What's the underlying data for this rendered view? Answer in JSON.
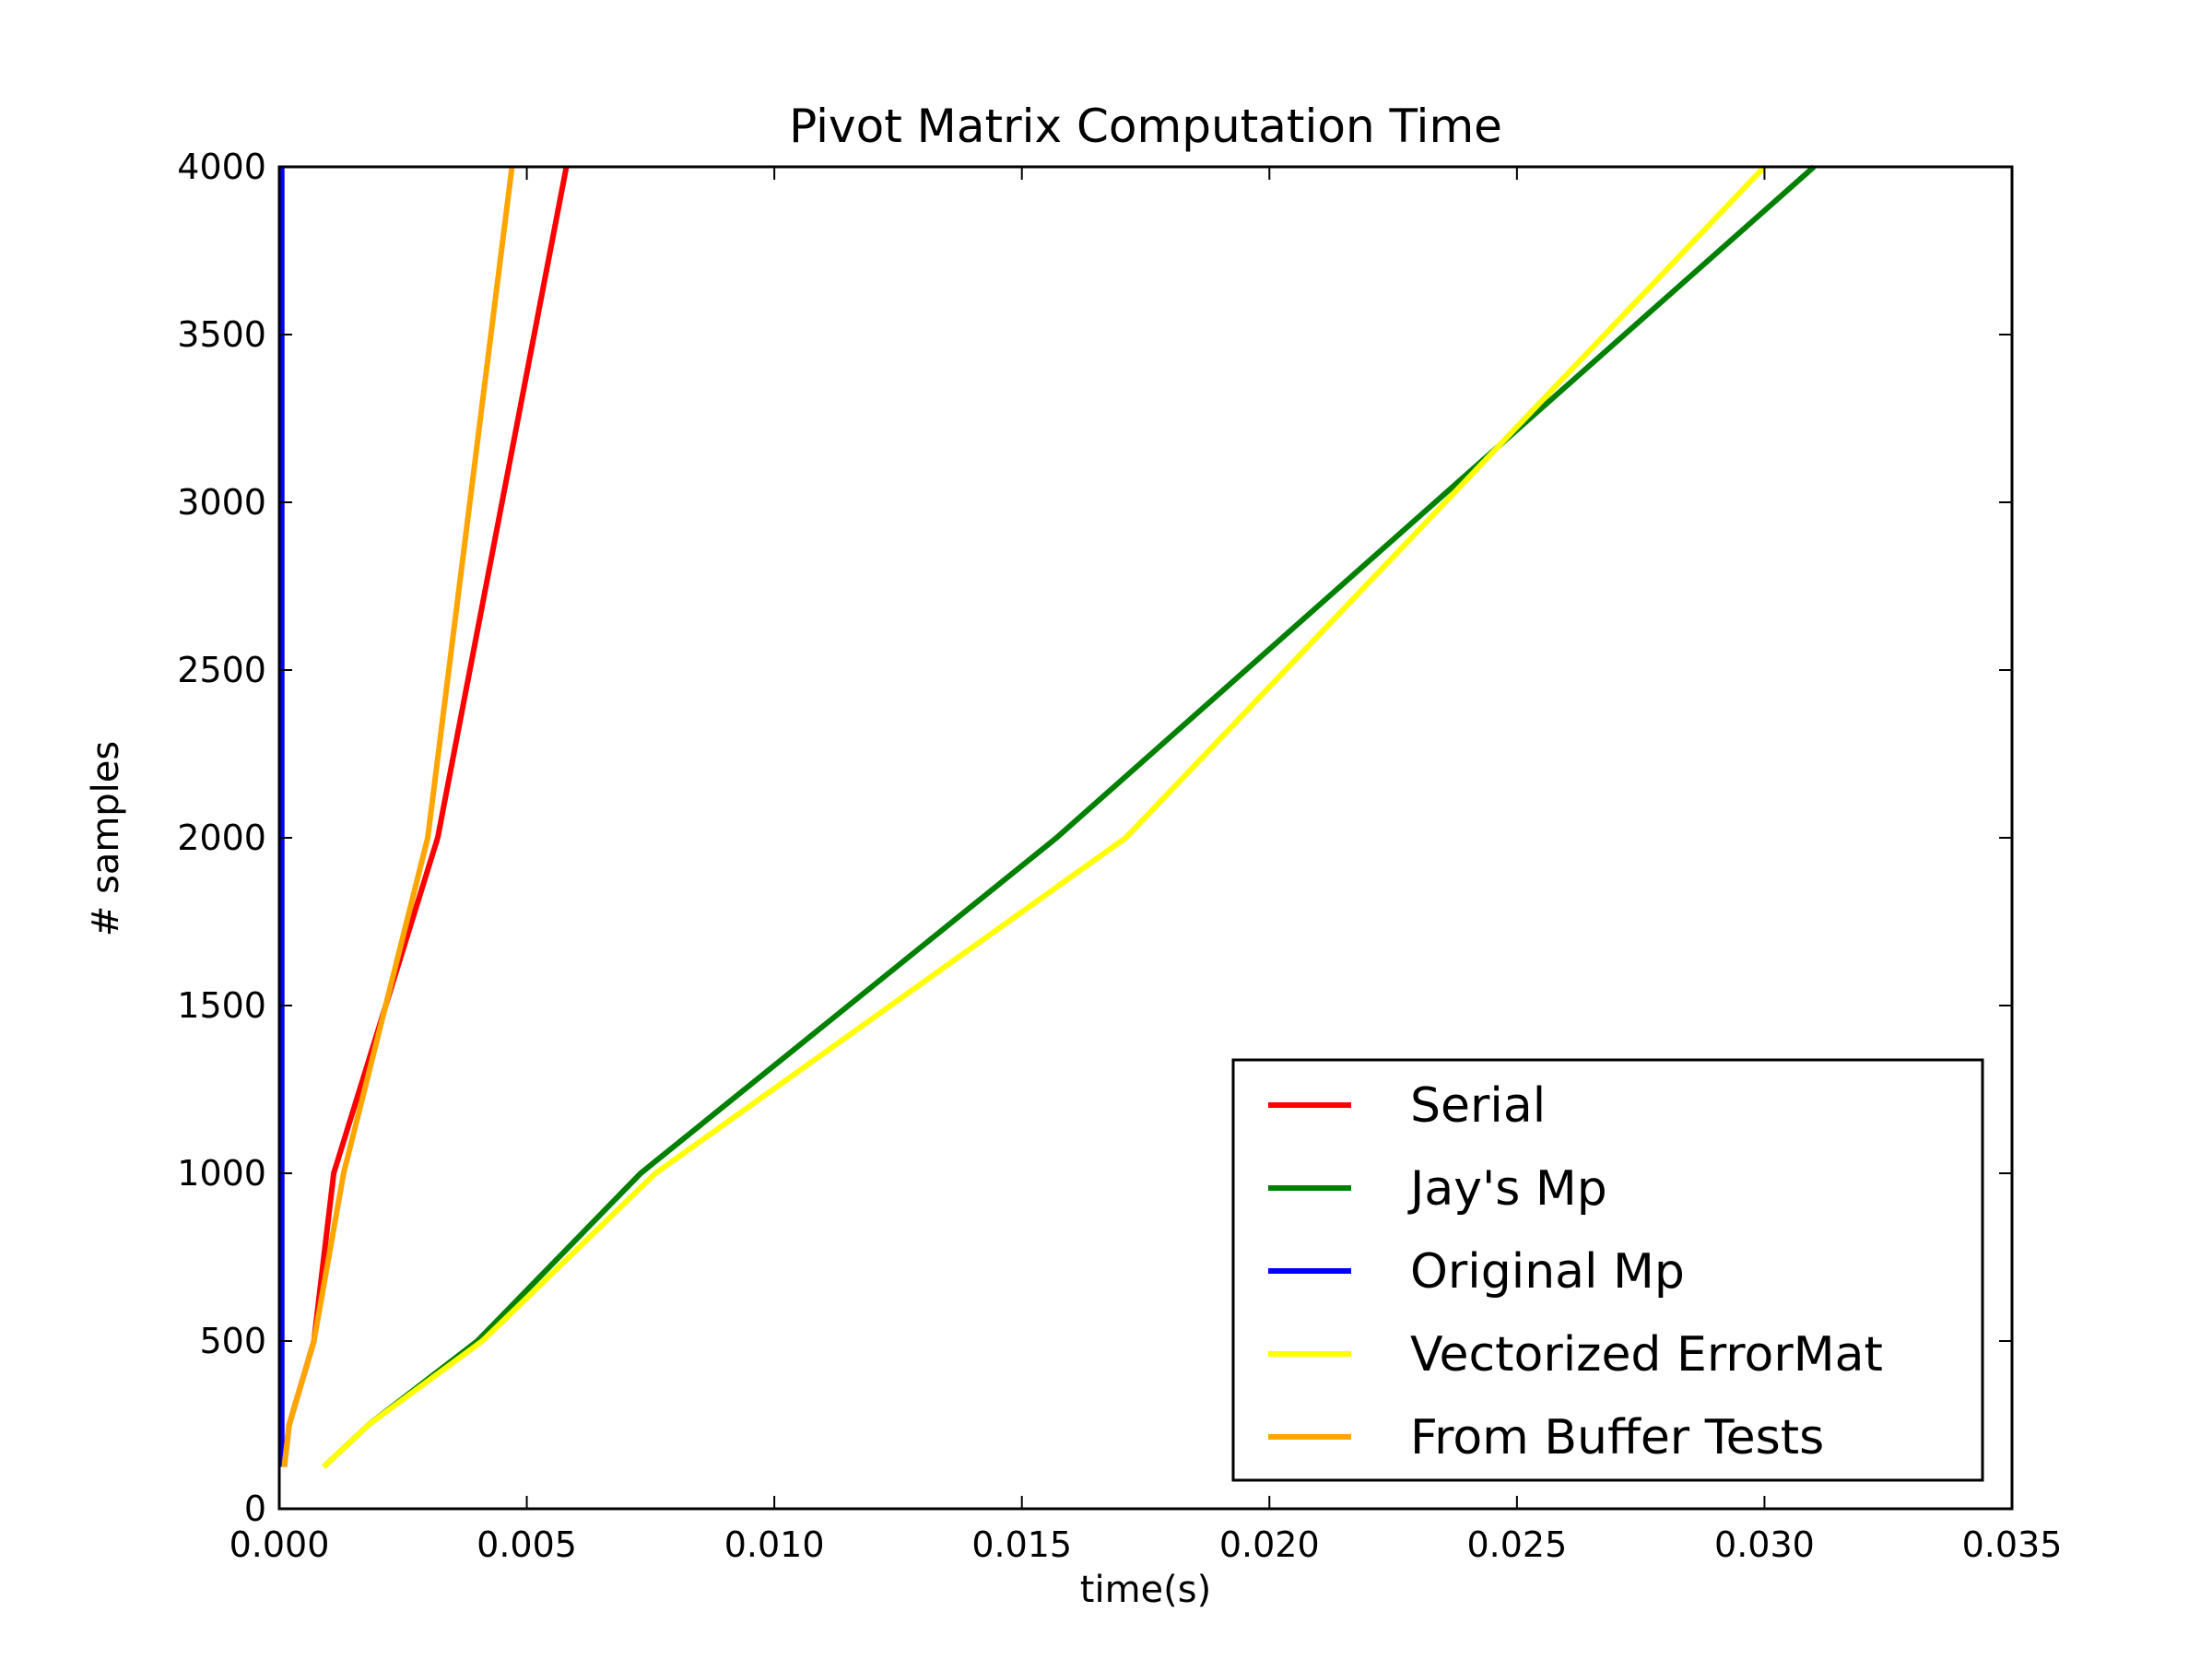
{
  "chart_data": {
    "type": "line",
    "title": "Pivot Matrix Computation Time",
    "xlabel": "time(s)",
    "ylabel": "# samples",
    "xlim": [
      0.0,
      0.035
    ],
    "ylim": [
      0,
      4000
    ],
    "xticks": [
      "0.000",
      "0.005",
      "0.010",
      "0.015",
      "0.020",
      "0.025",
      "0.030",
      "0.035"
    ],
    "yticks": [
      "0",
      "500",
      "1000",
      "1500",
      "2000",
      "2500",
      "3000",
      "3500",
      "4000"
    ],
    "grid": false,
    "legend_position": "lower-right",
    "series": [
      {
        "name": "Serial",
        "color": "#ff0000",
        "x": [
          0.0001,
          0.0002,
          0.0007,
          0.0011,
          0.0032,
          0.0058
        ],
        "y": [
          125,
          250,
          500,
          1000,
          2000,
          4000
        ]
      },
      {
        "name": "Jay's Mp",
        "color": "#008000",
        "x": [
          0.0009,
          0.0018,
          0.004,
          0.0073,
          0.0157,
          0.031
        ],
        "y": [
          125,
          250,
          500,
          1000,
          2000,
          4000
        ]
      },
      {
        "name": "Original Mp",
        "color": "#0000ff",
        "x": [
          5e-05,
          5e-05,
          5e-05,
          5e-05,
          5e-05,
          5e-05
        ],
        "y": [
          125,
          250,
          500,
          1000,
          2000,
          4000
        ]
      },
      {
        "name": "Vectorized ErrorMat",
        "color": "#ffff00",
        "x": [
          0.0009,
          0.0018,
          0.0041,
          0.0076,
          0.0171,
          0.03
        ],
        "y": [
          125,
          250,
          500,
          1000,
          2000,
          4000
        ]
      },
      {
        "name": "From Buffer Tests",
        "color": "#ffa500",
        "x": [
          0.0001,
          0.0002,
          0.0007,
          0.0013,
          0.003,
          0.0047
        ],
        "y": [
          125,
          250,
          500,
          1000,
          2000,
          4000
        ]
      }
    ]
  }
}
